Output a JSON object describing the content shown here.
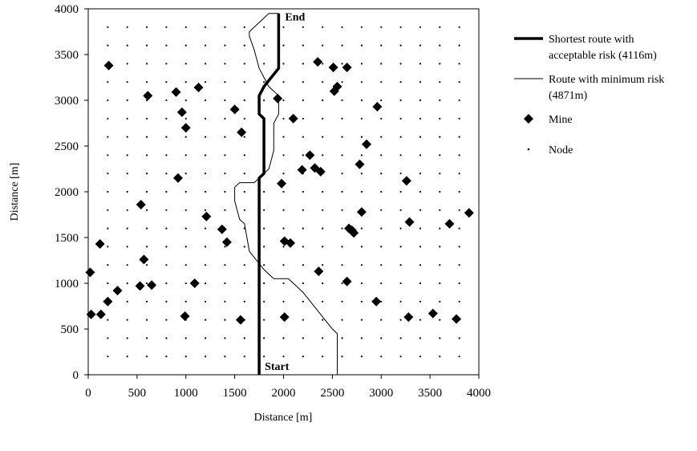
{
  "chart_data": {
    "type": "scatter",
    "xlabel": "Distance [m]",
    "ylabel": "Distance [m]",
    "xlim": [
      0,
      4000
    ],
    "ylim": [
      0,
      4000
    ],
    "xticks": [
      "0",
      "500",
      "1000",
      "1500",
      "2000",
      "2500",
      "3000",
      "3500",
      "4000"
    ],
    "yticks": [
      "0",
      "500",
      "1000",
      "1500",
      "2000",
      "2500",
      "3000",
      "3500",
      "4000"
    ],
    "grid": false,
    "node_spacing": 200,
    "legend_position": "right",
    "annotations": {
      "start": "Start",
      "end": "End"
    },
    "series": [
      {
        "name": "Shortest route with acceptable risk (4116m)",
        "legend_lines": [
          "Shortest route with",
          "acceptable risk (4116m)"
        ],
        "style": "thick-line",
        "points": [
          [
            1750,
            0
          ],
          [
            1750,
            2150
          ],
          [
            1800,
            2200
          ],
          [
            1800,
            2800
          ],
          [
            1750,
            2850
          ],
          [
            1750,
            3050
          ],
          [
            1800,
            3150
          ],
          [
            1950,
            3350
          ],
          [
            1950,
            3950
          ]
        ]
      },
      {
        "name": "Route with minimum risk (4871m)",
        "legend_lines": [
          "Route with minimum risk",
          "(4871m)"
        ],
        "style": "thin-line",
        "points": [
          [
            2550,
            0
          ],
          [
            2550,
            450
          ],
          [
            2500,
            500
          ],
          [
            2350,
            700
          ],
          [
            2200,
            900
          ],
          [
            2050,
            1050
          ],
          [
            1900,
            1050
          ],
          [
            1850,
            1100
          ],
          [
            1800,
            1150
          ],
          [
            1650,
            1350
          ],
          [
            1600,
            1650
          ],
          [
            1550,
            1700
          ],
          [
            1500,
            1900
          ],
          [
            1500,
            2050
          ],
          [
            1550,
            2100
          ],
          [
            1700,
            2100
          ],
          [
            1850,
            2250
          ],
          [
            1900,
            2450
          ],
          [
            1900,
            2750
          ],
          [
            1950,
            2850
          ],
          [
            1950,
            3050
          ],
          [
            1850,
            3150
          ],
          [
            1800,
            3250
          ],
          [
            1750,
            3350
          ],
          [
            1700,
            3550
          ],
          [
            1650,
            3700
          ],
          [
            1650,
            3750
          ],
          [
            1850,
            3950
          ],
          [
            1950,
            3950
          ]
        ]
      },
      {
        "name": "Mine",
        "style": "diamond",
        "points": [
          [
            20,
            1120
          ],
          [
            30,
            660
          ],
          [
            120,
            1430
          ],
          [
            130,
            660
          ],
          [
            200,
            800
          ],
          [
            210,
            3380
          ],
          [
            300,
            920
          ],
          [
            530,
            970
          ],
          [
            540,
            1860
          ],
          [
            570,
            1260
          ],
          [
            610,
            3050
          ],
          [
            650,
            980
          ],
          [
            900,
            3090
          ],
          [
            920,
            2150
          ],
          [
            960,
            2870
          ],
          [
            990,
            640
          ],
          [
            1000,
            2700
          ],
          [
            1090,
            1000
          ],
          [
            1130,
            3140
          ],
          [
            1210,
            1730
          ],
          [
            1370,
            1590
          ],
          [
            1420,
            1450
          ],
          [
            1500,
            2900
          ],
          [
            1570,
            2650
          ],
          [
            1560,
            600
          ],
          [
            1940,
            3020
          ],
          [
            1980,
            2090
          ],
          [
            2010,
            1460
          ],
          [
            2010,
            630
          ],
          [
            2070,
            1440
          ],
          [
            2100,
            2800
          ],
          [
            2190,
            2240
          ],
          [
            2270,
            2400
          ],
          [
            2320,
            2260
          ],
          [
            2350,
            3420
          ],
          [
            2360,
            1130
          ],
          [
            2380,
            2220
          ],
          [
            2510,
            3360
          ],
          [
            2520,
            3100
          ],
          [
            2550,
            3150
          ],
          [
            2650,
            3360
          ],
          [
            2650,
            1020
          ],
          [
            2670,
            1600
          ],
          [
            2700,
            1580
          ],
          [
            2720,
            1550
          ],
          [
            2780,
            2300
          ],
          [
            2800,
            1780
          ],
          [
            2850,
            2520
          ],
          [
            2950,
            800
          ],
          [
            2960,
            2930
          ],
          [
            3260,
            2120
          ],
          [
            3280,
            630
          ],
          [
            3290,
            1670
          ],
          [
            3530,
            670
          ],
          [
            3700,
            1650
          ],
          [
            3770,
            610
          ],
          [
            3900,
            1770
          ]
        ]
      },
      {
        "name": "Node",
        "style": "dot",
        "grid_spacing": 200
      }
    ]
  }
}
